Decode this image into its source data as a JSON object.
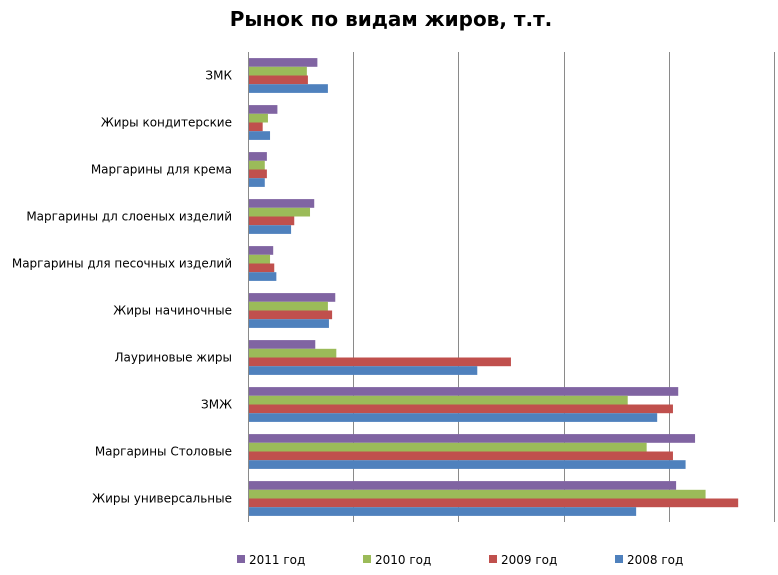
{
  "chart_data": {
    "type": "bar",
    "orientation": "horizontal",
    "title": "Рынок по видам жиров, т.т.",
    "xlabel": "",
    "ylabel": "",
    "xlim": [
      0,
      50
    ],
    "grid": true,
    "legend_position": "bottom",
    "categories": [
      "ЗМК",
      "Жиры кондитерские",
      "Маргарины для  крема",
      "Маргарины дл слоеных изделий",
      "Маргарины для песочных изделий",
      "Жиры начиночные",
      "Лауриновые жиры",
      "ЗМЖ",
      "Маргарины Столовые",
      "Жиры универсальные"
    ],
    "series": [
      {
        "name": "2011 год",
        "color": "#8064a2",
        "values": [
          6.5,
          2.7,
          1.7,
          6.2,
          2.3,
          8.2,
          6.3,
          40.8,
          42.4,
          40.6
        ]
      },
      {
        "name": "2010 год",
        "color": "#9bbb59",
        "values": [
          5.5,
          1.8,
          1.5,
          5.8,
          2.0,
          7.5,
          8.3,
          36.0,
          37.8,
          43.4
        ]
      },
      {
        "name": "2009 год",
        "color": "#c0504d",
        "values": [
          5.6,
          1.3,
          1.7,
          4.3,
          2.4,
          7.9,
          24.9,
          40.3,
          40.3,
          46.5
        ]
      },
      {
        "name": "2008 год",
        "color": "#4f81bd",
        "values": [
          7.5,
          2.0,
          1.5,
          4.0,
          2.6,
          7.6,
          21.7,
          38.8,
          41.5,
          36.8
        ]
      }
    ]
  }
}
